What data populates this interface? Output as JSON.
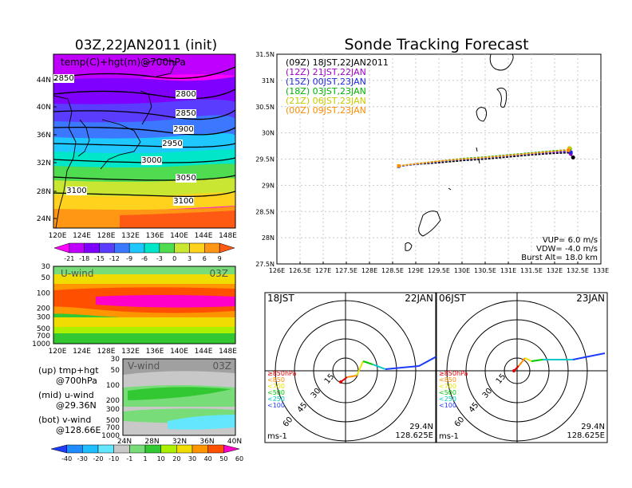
{
  "left": {
    "title": "03Z,22JAN2011 (init)",
    "map_label": "temp(C)+hgt(m)@700hPa",
    "lat_ticks": [
      "44N",
      "40N",
      "36N",
      "32N",
      "28N",
      "24N"
    ],
    "lon_ticks": [
      "120E",
      "124E",
      "128E",
      "132E",
      "136E",
      "140E",
      "144E",
      "148E"
    ],
    "contours": [
      "2850",
      "2800",
      "2850",
      "2900",
      "2950",
      "3000",
      "3050",
      "3100",
      "3100"
    ],
    "temp_colorbar": [
      "-21",
      "-18",
      "-15",
      "-12",
      "-9",
      "-6",
      "-3",
      "0",
      "3",
      "6",
      "9"
    ],
    "temp_colors": [
      "#ff00ff",
      "#c000ff",
      "#8000ff",
      "#5a3cff",
      "#3c78ff",
      "#1ec8ff",
      "#00e6c8",
      "#50dc50",
      "#c8e632",
      "#ffd21e",
      "#ff9614",
      "#ff5a14"
    ]
  },
  "uwind": {
    "label": "U-wind",
    "time": "03Z",
    "p_ticks": [
      "30",
      "50",
      "100",
      "200",
      "300",
      "500",
      "700",
      "1000"
    ],
    "lon_ticks": [
      "120E",
      "124E",
      "128E",
      "132E",
      "136E",
      "140E",
      "144E",
      "148E"
    ]
  },
  "vwind": {
    "label": "V-wind",
    "time": "03Z",
    "p_ticks": [
      "30",
      "50",
      "100",
      "200",
      "300",
      "500",
      "700",
      "1000"
    ],
    "lat_ticks": [
      "24N",
      "28N",
      "32N",
      "36N",
      "40N"
    ]
  },
  "notes": {
    "up_a": "(up) tmp+hgt",
    "up_b": "@700hPa",
    "mid_a": "(mid) u-wind",
    "mid_b": "@29.36N",
    "bot_a": "(bot) v-wind",
    "bot_b": "@128.66E"
  },
  "wind_colorbar": [
    "-40",
    "-30",
    "-20",
    "-10",
    "-1",
    "1",
    "10",
    "20",
    "30",
    "40",
    "50",
    "60"
  ],
  "wind_colors": [
    "#1e3cff",
    "#1e8cff",
    "#1ebeff",
    "#64e6ff",
    "#c8c8c8",
    "#78dc78",
    "#32c832",
    "#aaf000",
    "#f0dc00",
    "#ff9600",
    "#ff5000",
    "#ff00c8"
  ],
  "chart_data": {
    "type": "line",
    "title": "Sonde Tracking Forecast",
    "xlabel": "",
    "ylabel": "",
    "x_ticks": [
      "126E",
      "126.5E",
      "127E",
      "127.5E",
      "128E",
      "128.5E",
      "129E",
      "129.5E",
      "130E",
      "130.5E",
      "131E",
      "131.5E",
      "132E",
      "132.5E",
      "133E"
    ],
    "y_ticks": [
      "31.5N",
      "31N",
      "30.5N",
      "30N",
      "29.5N",
      "29N",
      "28.5N",
      "28N",
      "27.5N"
    ],
    "xlim": [
      126,
      133
    ],
    "ylim": [
      27.5,
      31.5
    ],
    "grid": true,
    "legend_position": "top-left",
    "series": [
      {
        "name": "(09Z)  18JST,22JAN2011",
        "color": "#000000",
        "x": [
          128.63,
          129.0,
          129.5,
          130.0,
          130.5,
          131.0,
          131.5,
          132.0,
          132.3,
          132.4
        ],
        "y": [
          29.37,
          29.4,
          29.43,
          29.47,
          29.5,
          29.54,
          29.58,
          29.61,
          29.62,
          29.53
        ]
      },
      {
        "name": "(12Z)  21JST,22JAN",
        "color": "#a000c8",
        "x": [
          128.63,
          129.0,
          129.5,
          130.0,
          130.5,
          131.0,
          131.5,
          132.0,
          132.3,
          132.35
        ],
        "y": [
          29.37,
          29.41,
          29.45,
          29.5,
          29.52,
          29.56,
          29.6,
          29.63,
          29.64,
          29.6
        ]
      },
      {
        "name": "(15Z)  00JST,23JAN",
        "color": "#1e28dc",
        "x": [
          128.63,
          129.0,
          129.5,
          130.0,
          130.5,
          131.0,
          131.5,
          132.0,
          132.3,
          132.35
        ],
        "y": [
          29.36,
          29.4,
          29.45,
          29.49,
          29.52,
          29.56,
          29.6,
          29.64,
          29.65,
          29.63
        ]
      },
      {
        "name": "(18Z)  03JST,23JAN",
        "color": "#00b400",
        "x": [
          128.63,
          129.0,
          129.5,
          130.0,
          130.5,
          131.0,
          131.5,
          132.0,
          132.3,
          132.33
        ],
        "y": [
          29.37,
          29.41,
          29.46,
          29.51,
          29.54,
          29.58,
          29.62,
          29.66,
          29.68,
          29.7
        ]
      },
      {
        "name": "(21Z)  06JST,23JAN",
        "color": "#c8c800",
        "x": [
          128.63,
          129.0,
          129.5,
          130.0,
          130.5,
          131.0,
          131.5,
          132.0,
          132.3,
          132.32
        ],
        "y": [
          29.37,
          29.41,
          29.46,
          29.5,
          29.53,
          29.57,
          29.61,
          29.65,
          29.68,
          29.71
        ]
      },
      {
        "name": "(00Z)  09JST,23JAN",
        "color": "#ff8c00",
        "x": [
          128.63,
          129.0,
          129.5,
          130.0,
          130.5,
          131.0,
          131.5,
          132.0,
          132.3,
          132.3
        ],
        "y": [
          29.37,
          29.41,
          29.46,
          29.5,
          29.53,
          29.57,
          29.61,
          29.65,
          29.67,
          29.67
        ]
      }
    ],
    "annotations": [
      "VUP=  6.0  m/s",
      "VDW= -4.0  m/s",
      "Burst Alt=  18.0  km"
    ]
  },
  "hodo_left": {
    "time": "18JST",
    "date": "22JAN",
    "rings": [
      "15",
      "30",
      "45",
      "60"
    ],
    "levels": [
      "≥850hPa",
      "<850",
      "<700",
      "<500",
      "<250",
      "<100"
    ],
    "level_colors": [
      "#dc0000",
      "#ff8c00",
      "#e6e600",
      "#00c800",
      "#00c8c8",
      "#1e3cff"
    ],
    "units": "ms-1",
    "lat": "29.4N",
    "lon": "128.625E"
  },
  "hodo_right": {
    "time": "06JST",
    "date": "23JAN",
    "rings": [
      "15",
      "30",
      "45",
      "60"
    ],
    "levels": [
      "≥850hPa",
      "<850",
      "<700",
      "<500",
      "<250",
      "<100"
    ],
    "level_colors": [
      "#dc0000",
      "#ff8c00",
      "#e6e600",
      "#00c800",
      "#00c8c8",
      "#1e3cff"
    ],
    "units": "ms-1",
    "lat": "29.4N",
    "lon": "128.625E"
  }
}
